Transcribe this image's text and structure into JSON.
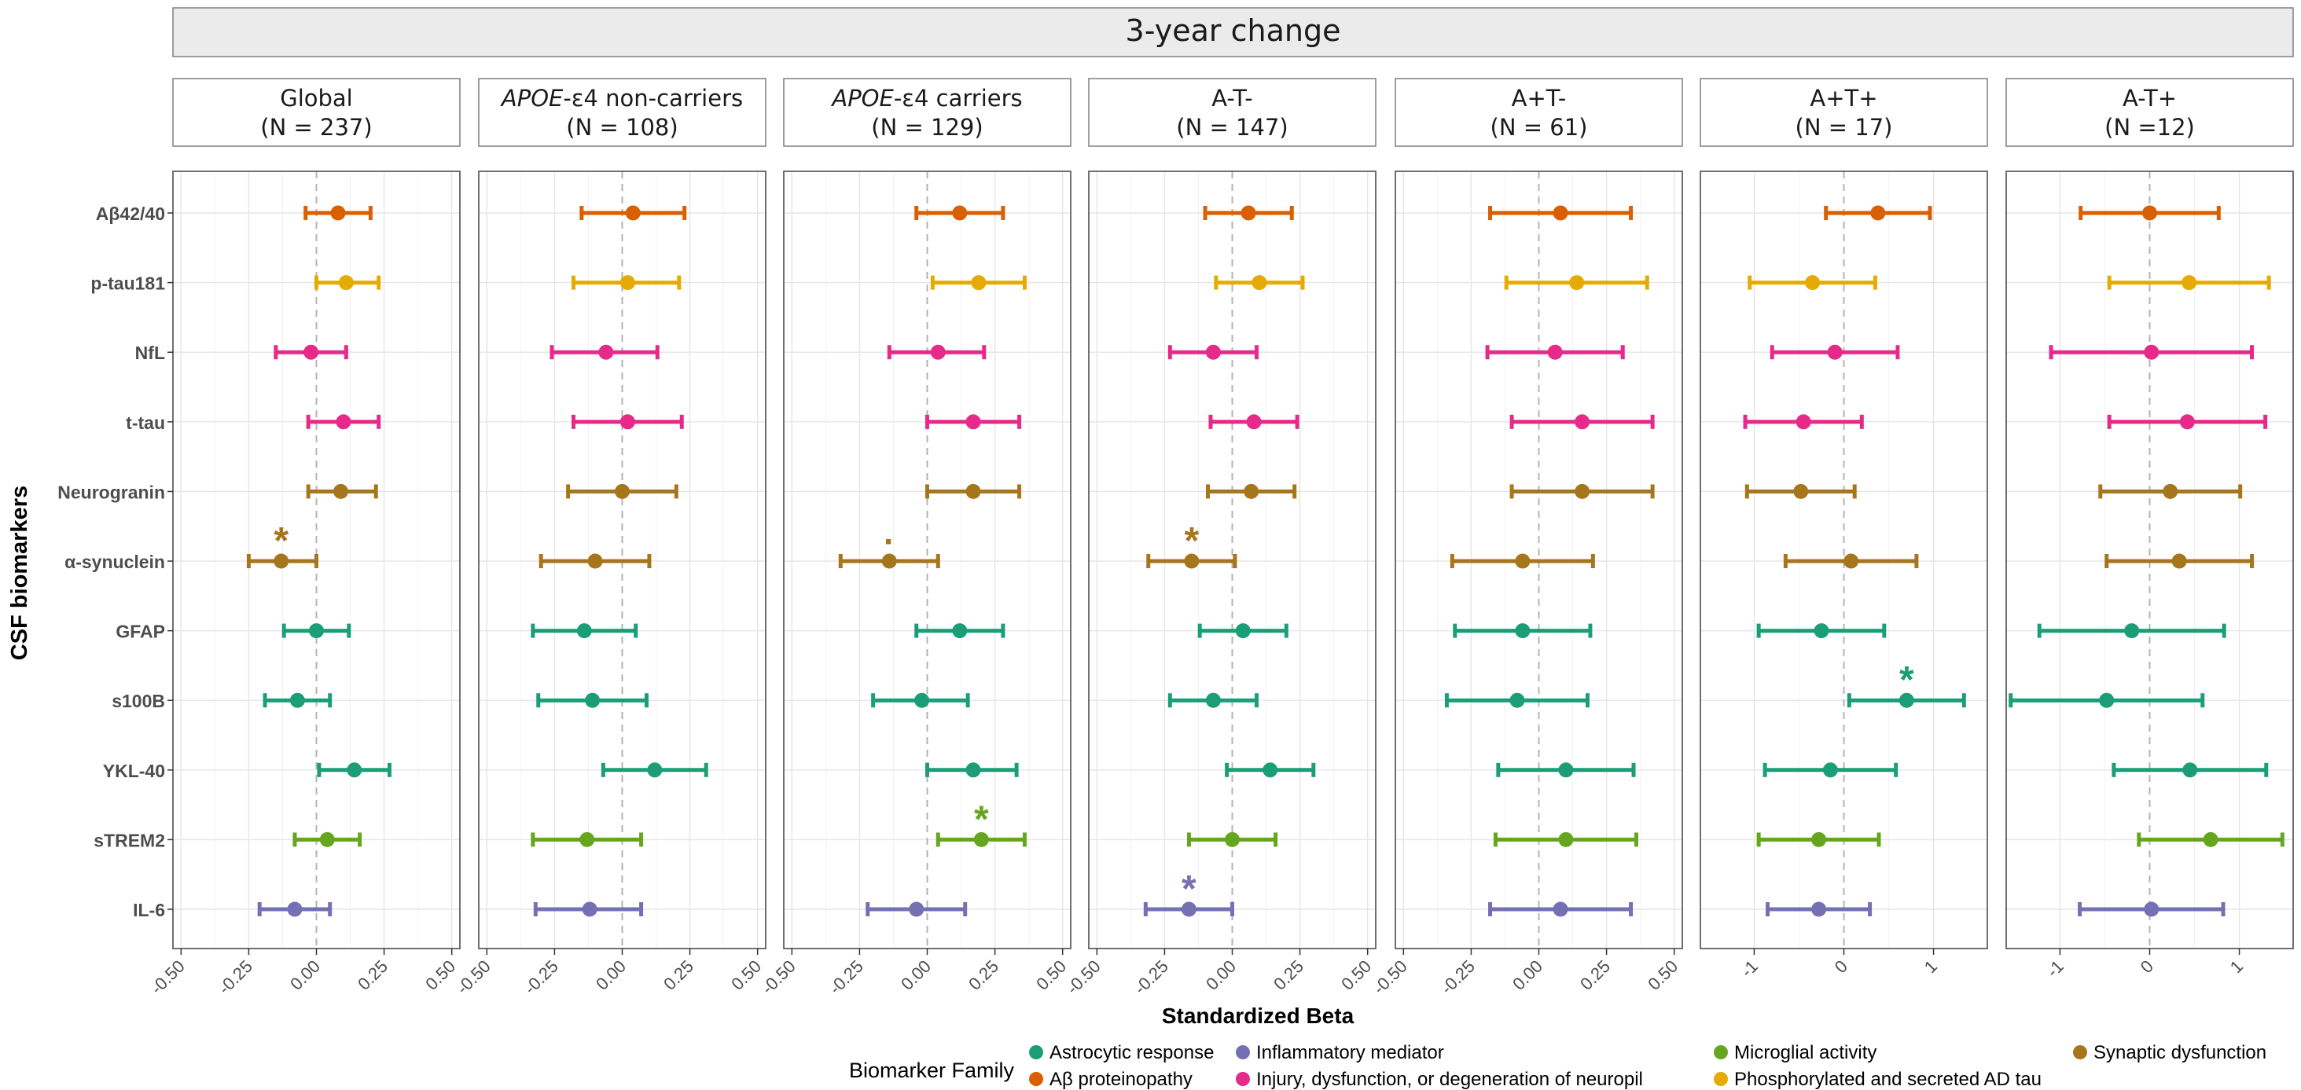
{
  "chart_data": {
    "type": "forest",
    "title": "3-year change",
    "xlabel": "Standardized Beta",
    "ylabel": "CSF biomarkers",
    "biomarkers": [
      "Aβ42/40",
      "p-tau181",
      "NfL",
      "t-tau",
      "Neurogranin",
      "α-synuclein",
      "GFAP",
      "s100B",
      "YKL-40",
      "sTREM2",
      "IL-6"
    ],
    "biomarker_family": [
      "Aβ proteinopathy",
      "Phosphorylated and secreted AD tau",
      "Injury, dysfunction, or degeneration of neuropil",
      "Injury, dysfunction, or degeneration of neuropil",
      "Synaptic dysfunction",
      "Synaptic dysfunction",
      "Astrocytic response",
      "Astrocytic response",
      "Astrocytic response",
      "Microglial activity",
      "Inflammatory mediator"
    ],
    "legend": {
      "title": "Biomarker Family",
      "placement": "bottom",
      "items": [
        {
          "name": "Astrocytic response",
          "color": "#1b9e77"
        },
        {
          "name": "Inflammatory mediator",
          "color": "#7570b3"
        },
        {
          "name": "Microglial activity",
          "color": "#66a61e"
        },
        {
          "name": "Synaptic dysfunction",
          "color": "#a6761d"
        },
        {
          "name": "Aβ proteinopathy",
          "color": "#d95f02"
        },
        {
          "name": "Injury, dysfunction, or degeneration of neuropil",
          "color": "#e7298a"
        },
        {
          "name": "Phosphorylated and secreted AD tau",
          "color": "#e6ab02"
        }
      ]
    },
    "grid": true,
    "reference_line": 0,
    "panels": [
      {
        "title_parts": [
          {
            "text": "Global",
            "italic": false
          }
        ],
        "n_label": "(N = 237)",
        "xlim": [
          -0.53,
          0.53
        ],
        "ticks": [
          -0.5,
          -0.25,
          0,
          0.25,
          0.5
        ],
        "tick_labels": [
          "-0.50",
          "-0.25",
          "0.00",
          "0.25",
          "0.50"
        ],
        "estimates": [
          0.08,
          0.11,
          -0.02,
          0.1,
          0.09,
          -0.13,
          0.0,
          -0.07,
          0.14,
          0.04,
          -0.08
        ],
        "lower": [
          -0.04,
          0.0,
          -0.15,
          -0.03,
          -0.03,
          -0.25,
          -0.12,
          -0.19,
          0.01,
          -0.08,
          -0.21
        ],
        "upper": [
          0.2,
          0.23,
          0.11,
          0.23,
          0.22,
          0.0,
          0.12,
          0.05,
          0.27,
          0.16,
          0.05
        ],
        "markers": [
          "",
          "",
          "",
          "",
          "",
          "*",
          "",
          "",
          "",
          "",
          ""
        ]
      },
      {
        "title_parts": [
          {
            "text": "APOE",
            "italic": true
          },
          {
            "text": "-ε4 non-carriers",
            "italic": false
          }
        ],
        "n_label": "(N = 108)",
        "xlim": [
          -0.53,
          0.53
        ],
        "ticks": [
          -0.5,
          -0.25,
          0,
          0.25,
          0.5
        ],
        "tick_labels": [
          "-0.50",
          "-0.25",
          "0.00",
          "0.25",
          "0.50"
        ],
        "estimates": [
          0.04,
          0.02,
          -0.06,
          0.02,
          0.0,
          -0.1,
          -0.14,
          -0.11,
          0.12,
          -0.13,
          -0.12
        ],
        "lower": [
          -0.15,
          -0.18,
          -0.26,
          -0.18,
          -0.2,
          -0.3,
          -0.33,
          -0.31,
          -0.07,
          -0.33,
          -0.32
        ],
        "upper": [
          0.23,
          0.21,
          0.13,
          0.22,
          0.2,
          0.1,
          0.05,
          0.09,
          0.31,
          0.07,
          0.07
        ],
        "markers": [
          "",
          "",
          "",
          "",
          "",
          "",
          "",
          "",
          "",
          "",
          ""
        ]
      },
      {
        "title_parts": [
          {
            "text": "APOE",
            "italic": true
          },
          {
            "text": "-ε4 carriers",
            "italic": false
          }
        ],
        "n_label": "(N = 129)",
        "xlim": [
          -0.53,
          0.53
        ],
        "ticks": [
          -0.5,
          -0.25,
          0,
          0.25,
          0.5
        ],
        "tick_labels": [
          "-0.50",
          "-0.25",
          "0.00",
          "0.25",
          "0.50"
        ],
        "estimates": [
          0.12,
          0.19,
          0.04,
          0.17,
          0.17,
          -0.14,
          0.12,
          -0.02,
          0.17,
          0.2,
          -0.04
        ],
        "lower": [
          -0.04,
          0.02,
          -0.14,
          0.0,
          0.0,
          -0.32,
          -0.04,
          -0.2,
          0.0,
          0.04,
          -0.22
        ],
        "upper": [
          0.28,
          0.36,
          0.21,
          0.34,
          0.34,
          0.04,
          0.28,
          0.15,
          0.33,
          0.36,
          0.14
        ],
        "markers": [
          "",
          "",
          "",
          "",
          "",
          "·",
          "",
          "",
          "",
          "*",
          ""
        ]
      },
      {
        "title_parts": [
          {
            "text": "A-T-",
            "italic": false
          }
        ],
        "n_label": "(N = 147)",
        "xlim": [
          -0.53,
          0.53
        ],
        "ticks": [
          -0.5,
          -0.25,
          0,
          0.25,
          0.5
        ],
        "tick_labels": [
          "-0.50",
          "-0.25",
          "0.00",
          "0.25",
          "0.50"
        ],
        "estimates": [
          0.06,
          0.1,
          -0.07,
          0.08,
          0.07,
          -0.15,
          0.04,
          -0.07,
          0.14,
          0.0,
          -0.16
        ],
        "lower": [
          -0.1,
          -0.06,
          -0.23,
          -0.08,
          -0.09,
          -0.31,
          -0.12,
          -0.23,
          -0.02,
          -0.16,
          -0.32
        ],
        "upper": [
          0.22,
          0.26,
          0.09,
          0.24,
          0.23,
          0.01,
          0.2,
          0.09,
          0.3,
          0.16,
          0.0
        ],
        "markers": [
          "",
          "",
          "",
          "",
          "",
          "*",
          "",
          "",
          "",
          "",
          "*"
        ]
      },
      {
        "title_parts": [
          {
            "text": "A+T-",
            "italic": false
          }
        ],
        "n_label": "(N = 61)",
        "xlim": [
          -0.53,
          0.53
        ],
        "ticks": [
          -0.5,
          -0.25,
          0,
          0.25,
          0.5
        ],
        "tick_labels": [
          "-0.50",
          "-0.25",
          "0.00",
          "0.25",
          "0.50"
        ],
        "estimates": [
          0.08,
          0.14,
          0.06,
          0.16,
          0.16,
          -0.06,
          -0.06,
          -0.08,
          0.1,
          0.1,
          0.08
        ],
        "lower": [
          -0.18,
          -0.12,
          -0.19,
          -0.1,
          -0.1,
          -0.32,
          -0.31,
          -0.34,
          -0.15,
          -0.16,
          -0.18
        ],
        "upper": [
          0.34,
          0.4,
          0.31,
          0.42,
          0.42,
          0.2,
          0.19,
          0.18,
          0.35,
          0.36,
          0.34
        ],
        "markers": [
          "",
          "",
          "",
          "",
          "",
          "",
          "",
          "",
          "",
          "",
          ""
        ]
      },
      {
        "title_parts": [
          {
            "text": "A+T+",
            "italic": false
          }
        ],
        "n_label": "(N = 17)",
        "xlim": [
          -1.6,
          1.6
        ],
        "ticks": [
          -1,
          0,
          1
        ],
        "tick_labels": [
          "-1",
          "0",
          "1"
        ],
        "estimates": [
          0.38,
          -0.35,
          -0.1,
          -0.45,
          -0.48,
          0.08,
          -0.25,
          0.7,
          -0.15,
          -0.28,
          -0.28
        ],
        "lower": [
          -0.2,
          -1.05,
          -0.8,
          -1.1,
          -1.08,
          -0.65,
          -0.95,
          0.06,
          -0.88,
          -0.95,
          -0.85
        ],
        "upper": [
          0.96,
          0.35,
          0.6,
          0.2,
          0.12,
          0.81,
          0.45,
          1.34,
          0.58,
          0.39,
          0.29
        ],
        "markers": [
          "",
          "",
          "",
          "",
          "",
          "",
          "",
          "*",
          "",
          "",
          ""
        ]
      },
      {
        "title_parts": [
          {
            "text": "A-T+",
            "italic": false
          }
        ],
        "n_label": "(N =12)",
        "xlim": [
          -1.6,
          1.6
        ],
        "ticks": [
          -1,
          0,
          1
        ],
        "tick_labels": [
          "-1",
          "0",
          "1"
        ],
        "estimates": [
          0.0,
          0.44,
          0.02,
          0.42,
          0.23,
          0.33,
          -0.2,
          -0.48,
          0.45,
          0.68,
          0.02
        ],
        "lower": [
          -0.77,
          -0.45,
          -1.1,
          -0.45,
          -0.55,
          -0.48,
          -1.23,
          -1.55,
          -0.4,
          -0.12,
          -0.78
        ],
        "upper": [
          0.77,
          1.33,
          1.14,
          1.29,
          1.01,
          1.14,
          0.83,
          0.59,
          1.3,
          1.48,
          0.82
        ],
        "markers": [
          "",
          "",
          "",
          "",
          "",
          "",
          "",
          "",
          "",
          "",
          ""
        ]
      }
    ]
  }
}
